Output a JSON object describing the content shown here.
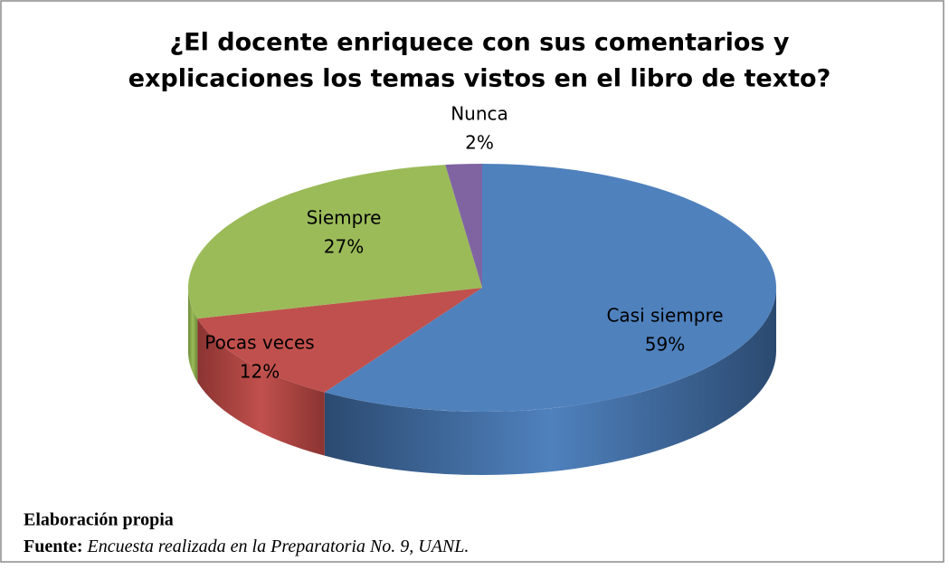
{
  "chart_data": {
    "type": "pie",
    "title": [
      "¿El docente enriquece con sus comentarios y",
      "explicaciones los temas vistos en el libro de texto?"
    ],
    "categories": [
      "Casi siempre",
      "Pocas veces",
      "Siempre",
      "Nunca"
    ],
    "values": [
      59,
      12,
      27,
      2
    ],
    "value_labels": [
      "59%",
      "12%",
      "27%",
      "2%"
    ],
    "colors": [
      "#4f81bd",
      "#c0504d",
      "#9bbb59",
      "#8064a2"
    ],
    "side_colors": [
      "#2b4a70",
      "#8a3431",
      "#6d8a38",
      "#5a4675"
    ],
    "notes": {
      "credit": "Elaboración propia",
      "source_label": "Fuente:",
      "source_text": "Encuesta realizada en la Preparatoria No. 9, UANL."
    }
  }
}
